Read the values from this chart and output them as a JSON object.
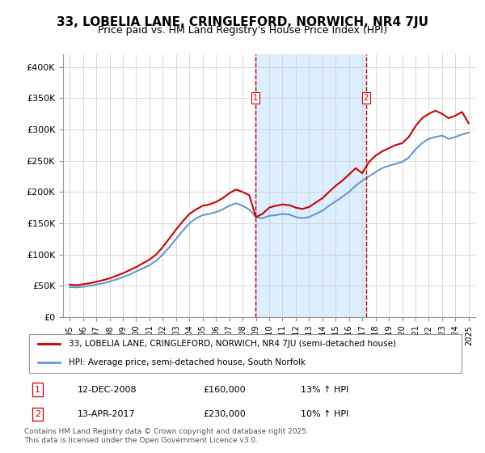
{
  "title": "33, LOBELIA LANE, CRINGLEFORD, NORWICH, NR4 7JU",
  "subtitle": "Price paid vs. HM Land Registry's House Price Index (HPI)",
  "legend_line1": "33, LOBELIA LANE, CRINGLEFORD, NORWICH, NR4 7JU (semi-detached house)",
  "legend_line2": "HPI: Average price, semi-detached house, South Norfolk",
  "transaction1_label": "1",
  "transaction1_date": "12-DEC-2008",
  "transaction1_price": "£160,000",
  "transaction1_hpi": "13% ↑ HPI",
  "transaction1_year": 2008.95,
  "transaction1_value": 160000,
  "transaction2_label": "2",
  "transaction2_date": "13-APR-2017",
  "transaction2_price": "£230,000",
  "transaction2_hpi": "10% ↑ HPI",
  "transaction2_year": 2017.28,
  "transaction2_value": 230000,
  "footer": "Contains HM Land Registry data © Crown copyright and database right 2025.\nThis data is licensed under the Open Government Licence v3.0.",
  "red_color": "#cc0000",
  "blue_color": "#6699cc",
  "shade_color": "#ddeeff",
  "ylim": [
    0,
    420000
  ],
  "yticks": [
    0,
    50000,
    100000,
    150000,
    200000,
    250000,
    300000,
    350000,
    400000
  ],
  "ytick_labels": [
    "£0",
    "£50K",
    "£100K",
    "£150K",
    "£200K",
    "£250K",
    "£300K",
    "£350K",
    "£400K"
  ]
}
